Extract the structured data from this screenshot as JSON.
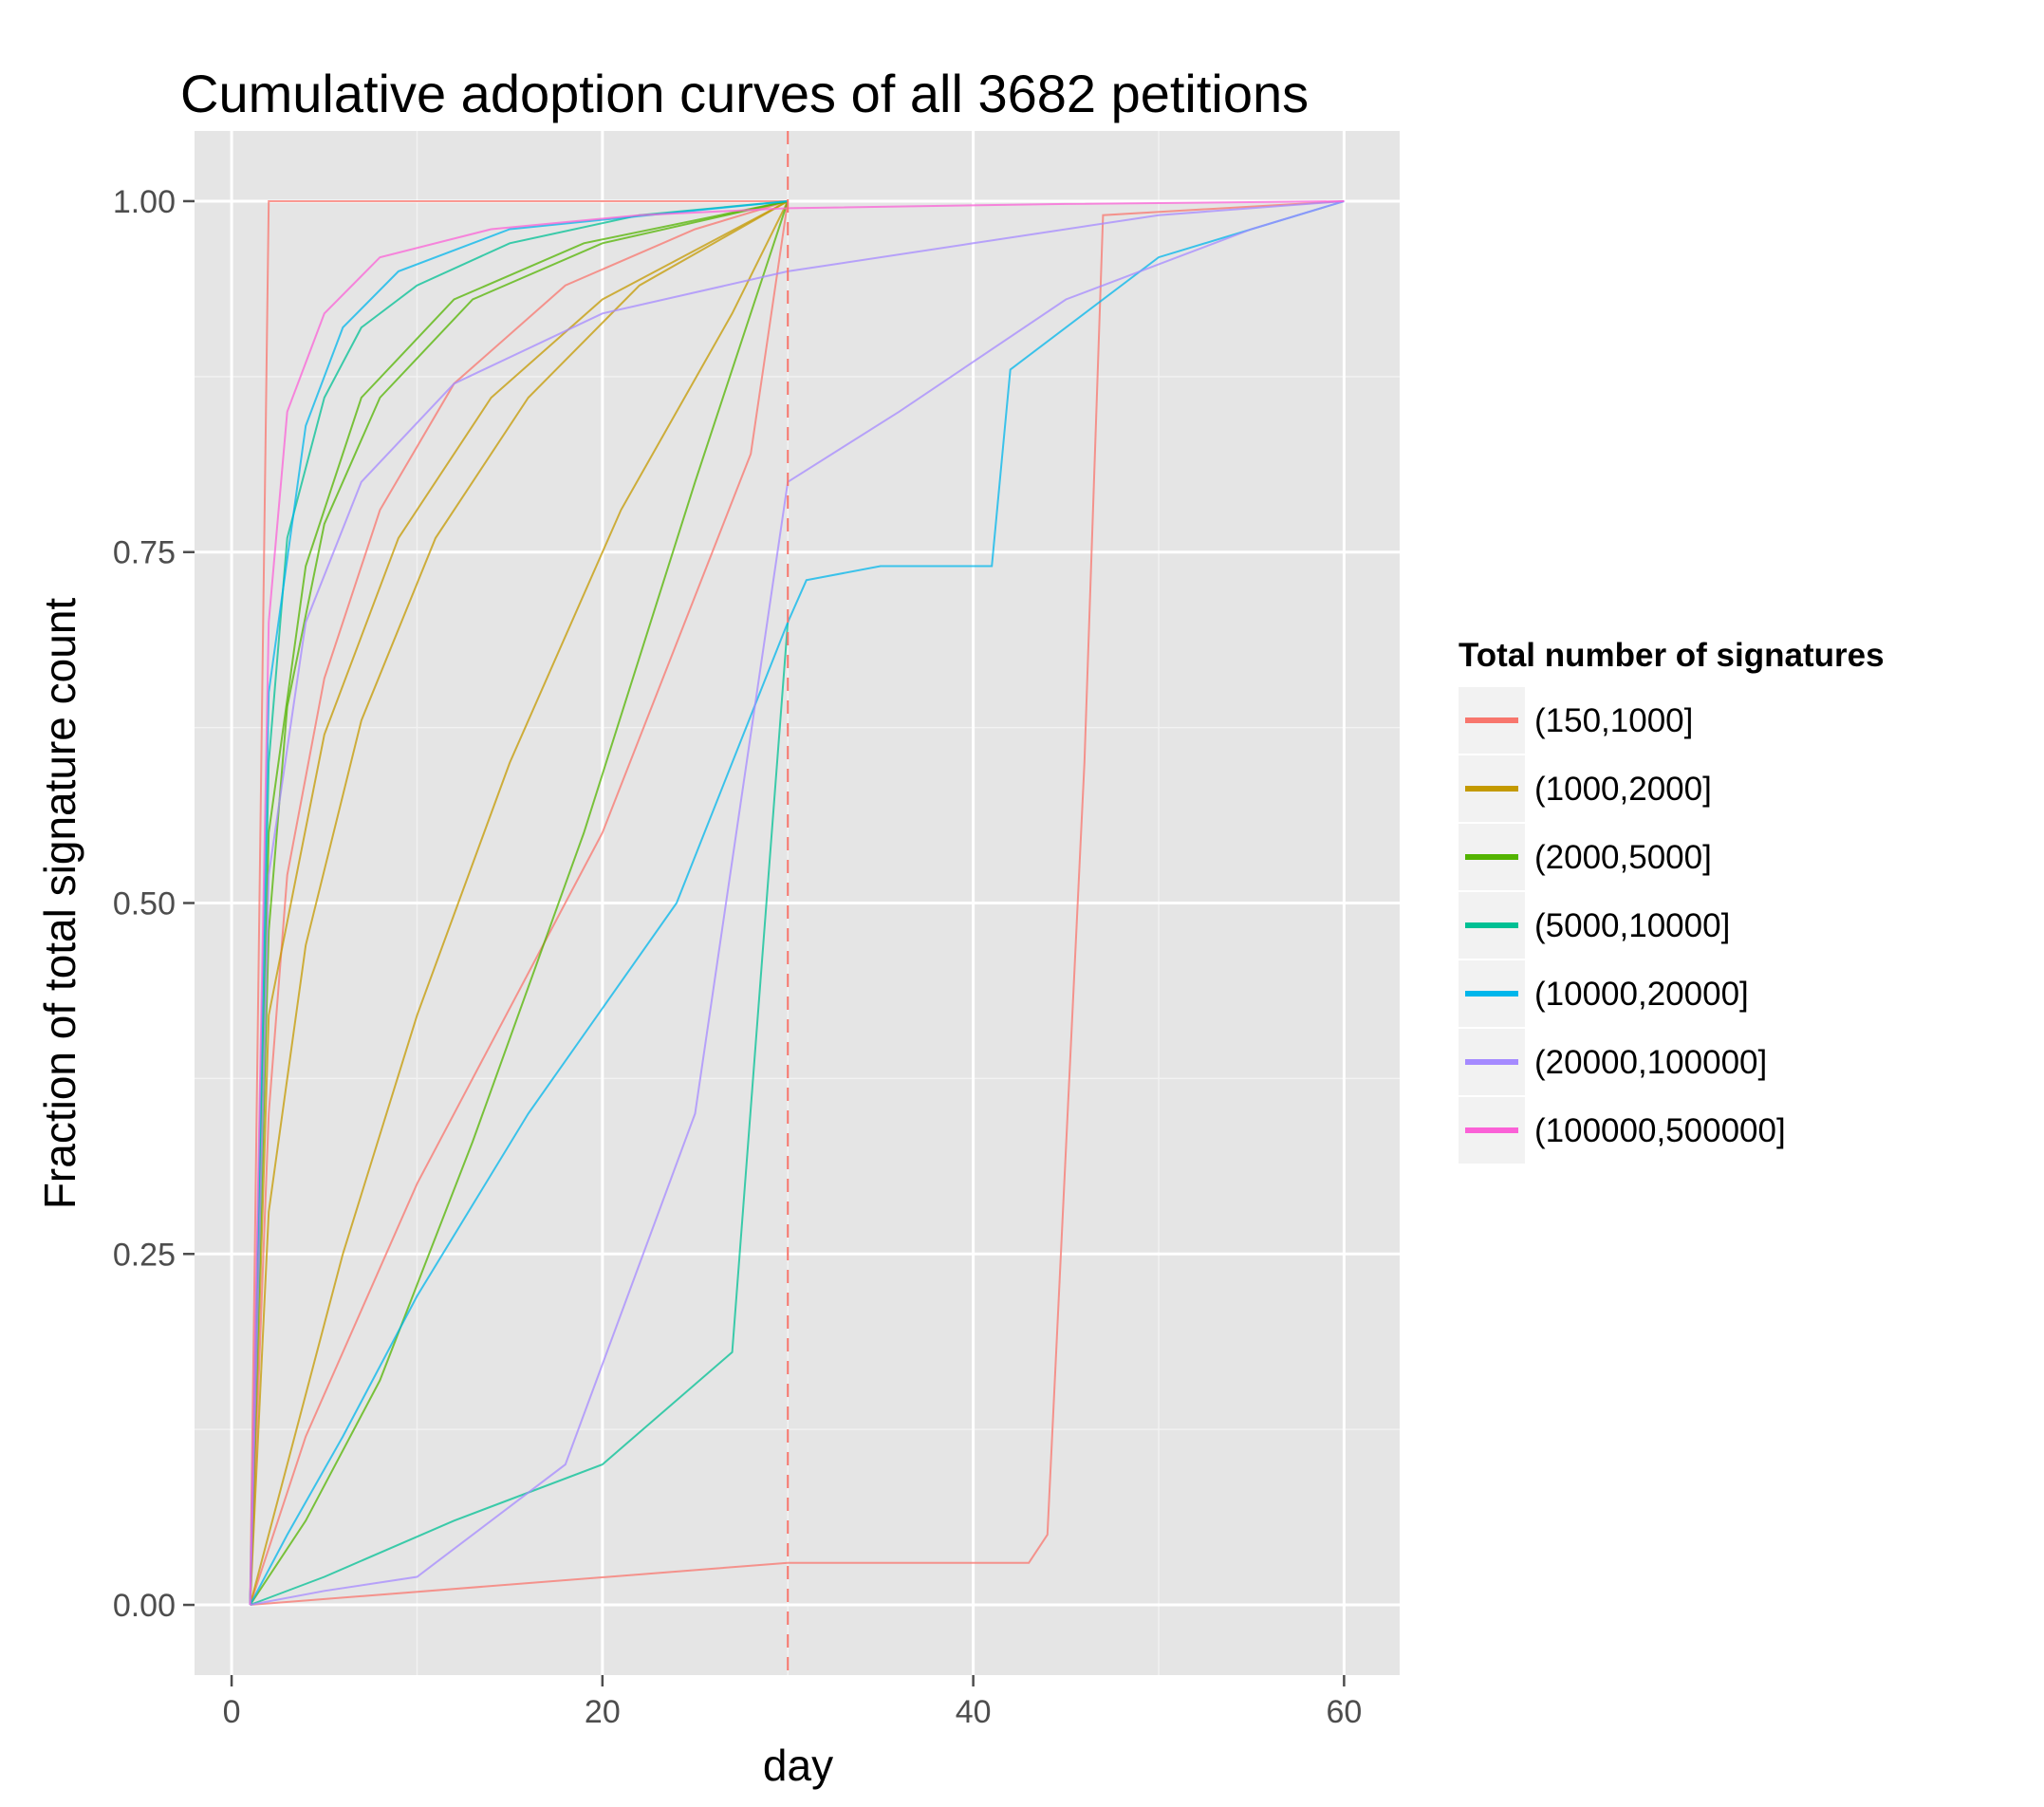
{
  "chart_data": {
    "type": "line",
    "title": "Cumulative adoption curves of all 3682 petitions",
    "xlabel": "day",
    "ylabel": "Fraction of total signature count",
    "xlim": [
      -2,
      63
    ],
    "ylim": [
      -0.05,
      1.05
    ],
    "x_ticks": [
      0,
      20,
      40,
      60
    ],
    "x_tick_labels": [
      "0",
      "20",
      "40",
      "60"
    ],
    "y_ticks": [
      0,
      0.25,
      0.5,
      0.75,
      1.0
    ],
    "y_tick_labels": [
      "0.00",
      "0.25",
      "0.50",
      "0.75",
      "1.00"
    ],
    "reference_line": {
      "x": 30,
      "style": "dashed",
      "color": "#f8766d"
    },
    "grid": true,
    "legend": {
      "title": "Total number of signatures",
      "placement": "right",
      "entries": [
        {
          "label": "(150,1000]",
          "color": "#f8766d"
        },
        {
          "label": "(1000,2000]",
          "color": "#c49a00"
        },
        {
          "label": "(2000,5000]",
          "color": "#53b400"
        },
        {
          "label": "(5000,10000]",
          "color": "#00c094"
        },
        {
          "label": "(10000,20000]",
          "color": "#00b6eb"
        },
        {
          "label": "(20000,100000]",
          "color": "#a58aff"
        },
        {
          "label": "(100000,500000]",
          "color": "#fb61d7"
        }
      ]
    },
    "series": [
      {
        "group": "(150,1000]",
        "x": [
          1,
          2,
          3,
          5,
          8,
          12,
          18,
          25,
          30
        ],
        "y": [
          0,
          0.35,
          0.52,
          0.66,
          0.78,
          0.87,
          0.94,
          0.98,
          1.0
        ]
      },
      {
        "group": "(150,1000]",
        "x": [
          1,
          4,
          10,
          20,
          28,
          30
        ],
        "y": [
          0,
          0.12,
          0.3,
          0.55,
          0.82,
          1.0
        ]
      },
      {
        "group": "(150,1000]",
        "x": [
          1,
          2,
          30
        ],
        "y": [
          0,
          1.0,
          1.0
        ]
      },
      {
        "group": "(150,1000]",
        "x": [
          1,
          30,
          43,
          44,
          46,
          47,
          60
        ],
        "y": [
          0,
          0.03,
          0.03,
          0.05,
          0.6,
          0.99,
          1.0
        ]
      },
      {
        "group": "(1000,2000]",
        "x": [
          1,
          2,
          4,
          7,
          11,
          16,
          22,
          30
        ],
        "y": [
          0,
          0.28,
          0.47,
          0.63,
          0.76,
          0.86,
          0.94,
          1.0
        ]
      },
      {
        "group": "(1000,2000]",
        "x": [
          1,
          3,
          6,
          10,
          15,
          21,
          27,
          30
        ],
        "y": [
          0,
          0.1,
          0.25,
          0.42,
          0.6,
          0.78,
          0.92,
          1.0
        ]
      },
      {
        "group": "(1000,2000]",
        "x": [
          1,
          2,
          5,
          9,
          14,
          20,
          30
        ],
        "y": [
          0,
          0.42,
          0.62,
          0.76,
          0.86,
          0.93,
          1.0
        ]
      },
      {
        "group": "(2000,5000]",
        "x": [
          1,
          2,
          3,
          5,
          8,
          13,
          20,
          30
        ],
        "y": [
          0,
          0.48,
          0.64,
          0.77,
          0.86,
          0.93,
          0.97,
          1.0
        ]
      },
      {
        "group": "(2000,5000]",
        "x": [
          1,
          4,
          8,
          13,
          19,
          25,
          30
        ],
        "y": [
          0,
          0.06,
          0.16,
          0.33,
          0.55,
          0.8,
          1.0
        ]
      },
      {
        "group": "(2000,5000]",
        "x": [
          1,
          2,
          4,
          7,
          12,
          19,
          30
        ],
        "y": [
          0,
          0.55,
          0.74,
          0.86,
          0.93,
          0.97,
          1.0
        ]
      },
      {
        "group": "(5000,10000]",
        "x": [
          1,
          2,
          3,
          5,
          7,
          10,
          15,
          22,
          30
        ],
        "y": [
          0,
          0.6,
          0.76,
          0.86,
          0.91,
          0.94,
          0.97,
          0.99,
          1.0
        ]
      },
      {
        "group": "(5000,10000]",
        "x": [
          1,
          5,
          12,
          20,
          27,
          30
        ],
        "y": [
          0,
          0.02,
          0.06,
          0.1,
          0.18,
          0.7
        ]
      },
      {
        "group": "(10000,20000]",
        "x": [
          1,
          2,
          4,
          6,
          9,
          15,
          30
        ],
        "y": [
          0,
          0.65,
          0.84,
          0.91,
          0.95,
          0.98,
          1.0
        ]
      },
      {
        "group": "(10000,20000]",
        "x": [
          1,
          3,
          6,
          10,
          16,
          24,
          30,
          31,
          35,
          41,
          42,
          50,
          60
        ],
        "y": [
          0,
          0.05,
          0.12,
          0.22,
          0.35,
          0.5,
          0.7,
          0.73,
          0.74,
          0.74,
          0.88,
          0.96,
          1.0
        ]
      },
      {
        "group": "(20000,100000]",
        "x": [
          1,
          2,
          4,
          7,
          12,
          20,
          30,
          40,
          50,
          60
        ],
        "y": [
          0,
          0.52,
          0.7,
          0.8,
          0.87,
          0.92,
          0.95,
          0.97,
          0.99,
          1.0
        ]
      },
      {
        "group": "(20000,100000]",
        "x": [
          1,
          5,
          10,
          18,
          25,
          30,
          36,
          45,
          55,
          60
        ],
        "y": [
          0,
          0.01,
          0.02,
          0.1,
          0.35,
          0.8,
          0.85,
          0.93,
          0.98,
          1.0
        ]
      },
      {
        "group": "(100000,500000]",
        "x": [
          1,
          2,
          3,
          5,
          8,
          14,
          22,
          30,
          45,
          60
        ],
        "y": [
          0,
          0.7,
          0.85,
          0.92,
          0.96,
          0.98,
          0.99,
          0.995,
          0.998,
          1.0
        ]
      }
    ]
  }
}
